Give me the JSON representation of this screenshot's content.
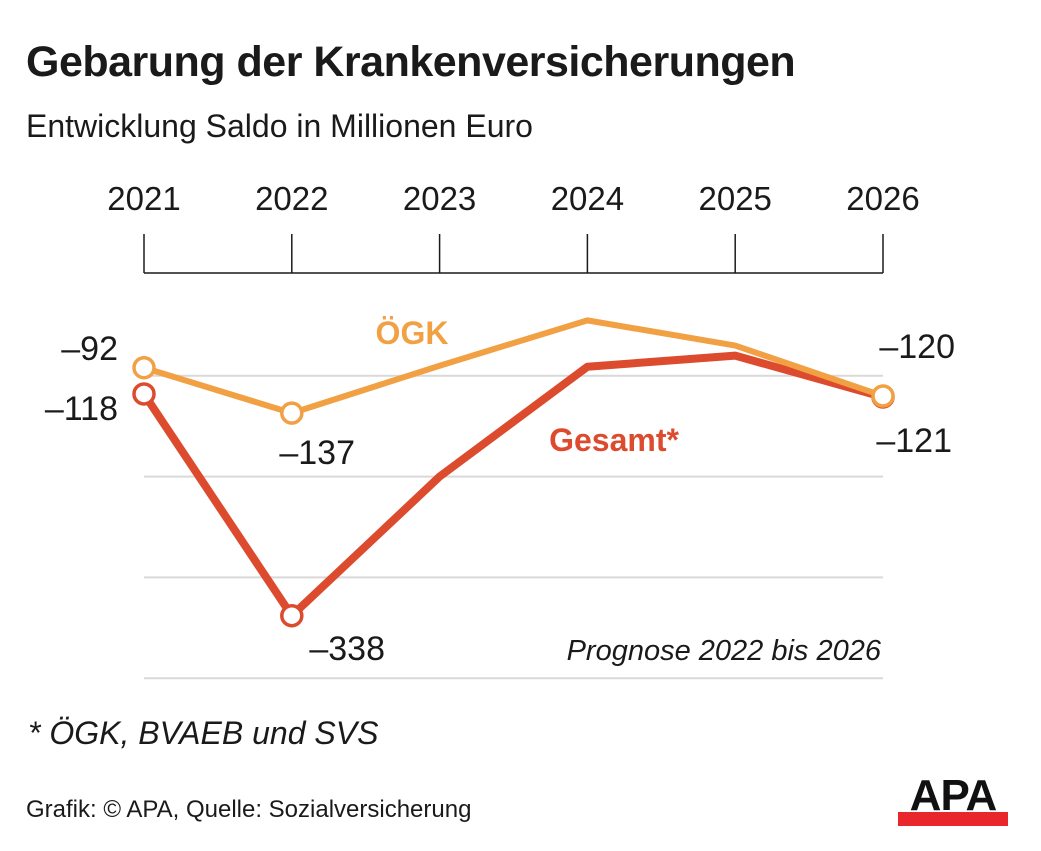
{
  "header": {
    "title": "Gebarung der Krankenversicherungen",
    "subtitle": "Entwicklung Saldo in Millionen Euro"
  },
  "footer": {
    "footnote": "* ÖGK, BVAEB und SVS",
    "source": "Grafik: © APA, Quelle: Sozialversicherung",
    "logo": "APA"
  },
  "colors": {
    "oegk": "#f2a044",
    "gesamt": "#dd4b2e",
    "grid": "#d9d9d9",
    "axis": "#1a1a1a",
    "logo_bar": "#e8262b"
  },
  "chart_data": {
    "type": "line",
    "title": "Gebarung der Krankenversicherungen",
    "subtitle": "Entwicklung Saldo in Millionen Euro",
    "xlabel": "",
    "ylabel": "",
    "x": [
      "2021",
      "2022",
      "2023",
      "2024",
      "2025",
      "2026"
    ],
    "ylim": [
      -400,
      -25
    ],
    "gridlines": [
      -100,
      -200,
      -300,
      -400
    ],
    "grid": true,
    "x_axis_position": "top",
    "series": [
      {
        "name": "ÖGK",
        "label": "ÖGK",
        "color": "#f2a044",
        "values": [
          -92,
          -137,
          -90,
          -45,
          -70,
          -120
        ],
        "markers": [
          0,
          1,
          5
        ],
        "data_labels": [
          {
            "index": 0,
            "text": "–92"
          },
          {
            "index": 1,
            "text": "–137"
          },
          {
            "index": 5,
            "text": "–120"
          }
        ]
      },
      {
        "name": "Gesamt*",
        "label": "Gesamt*",
        "color": "#dd4b2e",
        "values": [
          -118,
          -338,
          -200,
          -91,
          -80,
          -121
        ],
        "markers": [
          0,
          1,
          5
        ],
        "data_labels": [
          {
            "index": 0,
            "text": "–118"
          },
          {
            "index": 1,
            "text": "–338"
          },
          {
            "index": 5,
            "text": "–121"
          }
        ]
      }
    ],
    "annotations": [
      "Prognose 2022 bis 2026"
    ],
    "legend": "inline-labels"
  }
}
